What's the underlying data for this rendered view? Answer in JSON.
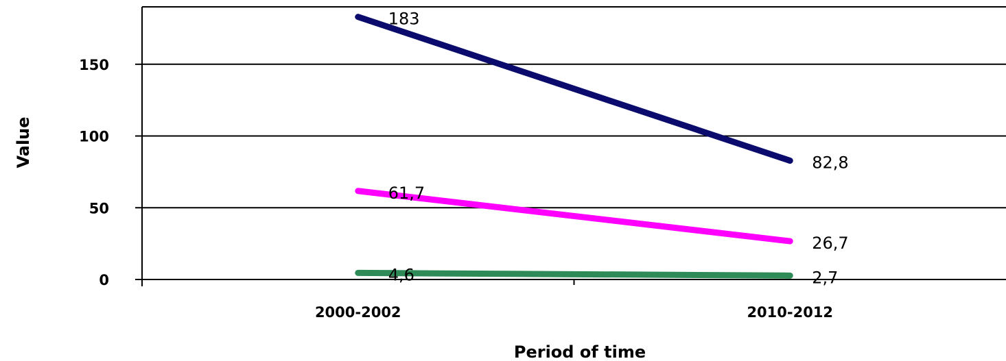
{
  "chart_data": {
    "type": "line",
    "title": "",
    "xlabel": "Period of time",
    "ylabel": "Value",
    "categories": [
      "2000-2002",
      "2010-2012"
    ],
    "ylim": [
      0,
      190
    ],
    "yticks": [
      0,
      50,
      100,
      150
    ],
    "grid": true,
    "legend": "none",
    "series": [
      {
        "color": "#0b0b6e",
        "values": [
          183,
          82.8
        ],
        "labels": [
          "183",
          "82,8"
        ]
      },
      {
        "color": "#ff00ff",
        "values": [
          61.7,
          26.7
        ],
        "labels": [
          "61,7",
          "26,7"
        ]
      },
      {
        "color": "#2e8b57",
        "values": [
          4.6,
          2.7
        ],
        "labels": [
          "4,6",
          "2,7"
        ]
      }
    ]
  }
}
